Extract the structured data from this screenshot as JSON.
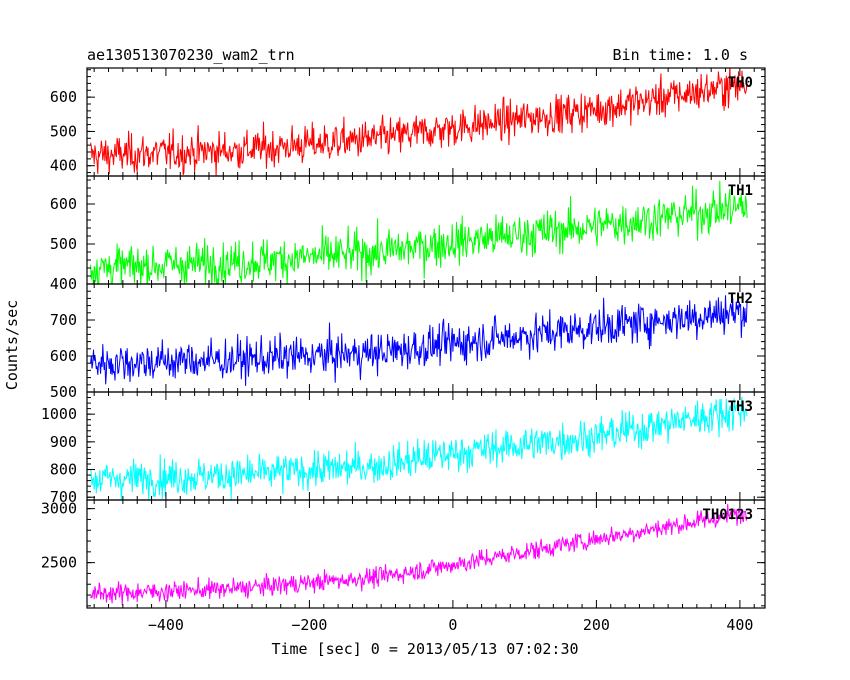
{
  "header": {
    "left_title": "ae130513070230_wam2_trn",
    "right_title": "Bin time: 1.0 s"
  },
  "chart_data": {
    "type": "line",
    "title": "ae130513070230_wam2_trn",
    "subtitle": "Bin time: 1.0 s",
    "xlabel": "Time [sec] 0 = 2013/05/13 07:02:30",
    "ylabel": "Counts/sec",
    "xlim": [
      -510,
      435
    ],
    "x_ticks": [
      -400,
      -200,
      0,
      200,
      400
    ],
    "x_tick_labels": [
      "−400",
      "−200",
      "0",
      "200",
      "400"
    ],
    "x_data_range": [
      -505,
      410
    ],
    "bin_time_s": 1.0,
    "grid": false,
    "panels": [
      {
        "name": "TH0",
        "color": "#ff0000",
        "ylim": [
          370,
          685
        ],
        "y_ticks": [
          400,
          500,
          600
        ],
        "y_tick_labels": [
          "400",
          "500",
          "600"
        ],
        "trend": {
          "x": [
            -505,
            -300,
            -100,
            0,
            200,
            410
          ],
          "y": [
            430,
            445,
            480,
            510,
            565,
            640
          ]
        },
        "noise_sd": 28
      },
      {
        "name": "TH1",
        "color": "#00ff00",
        "ylim": [
          400,
          670
        ],
        "y_ticks": [
          400,
          500,
          600
        ],
        "y_tick_labels": [
          "400",
          "500",
          "600"
        ],
        "trend": {
          "x": [
            -505,
            -300,
            -100,
            0,
            200,
            410
          ],
          "y": [
            440,
            455,
            480,
            505,
            545,
            595
          ]
        },
        "noise_sd": 27
      },
      {
        "name": "TH2",
        "color": "#0000ff",
        "ylim": [
          500,
          800
        ],
        "y_ticks": [
          500,
          600,
          700
        ],
        "y_tick_labels": [
          "500",
          "600",
          "700"
        ],
        "trend": {
          "x": [
            -505,
            -300,
            -100,
            0,
            200,
            410
          ],
          "y": [
            580,
            590,
            610,
            635,
            680,
            725
          ]
        },
        "noise_sd": 28
      },
      {
        "name": "TH3",
        "color": "#00ffff",
        "ylim": [
          690,
          1080
        ],
        "y_ticks": [
          700,
          800,
          900,
          1000
        ],
        "y_tick_labels": [
          "700",
          "800",
          "900",
          "1000"
        ],
        "trend": {
          "x": [
            -505,
            -300,
            -100,
            0,
            200,
            410
          ],
          "y": [
            765,
            780,
            815,
            860,
            920,
            1020
          ]
        },
        "noise_sd": 33
      },
      {
        "name": "TH0123",
        "color": "#ff00ff",
        "ylim": [
          2080,
          3080
        ],
        "y_ticks": [
          2500,
          3000
        ],
        "y_tick_labels": [
          "2500",
          "3000"
        ],
        "trend": {
          "x": [
            -505,
            -300,
            -100,
            0,
            200,
            410
          ],
          "y": [
            2210,
            2260,
            2370,
            2480,
            2720,
            2960
          ]
        },
        "noise_sd": 45
      }
    ]
  }
}
